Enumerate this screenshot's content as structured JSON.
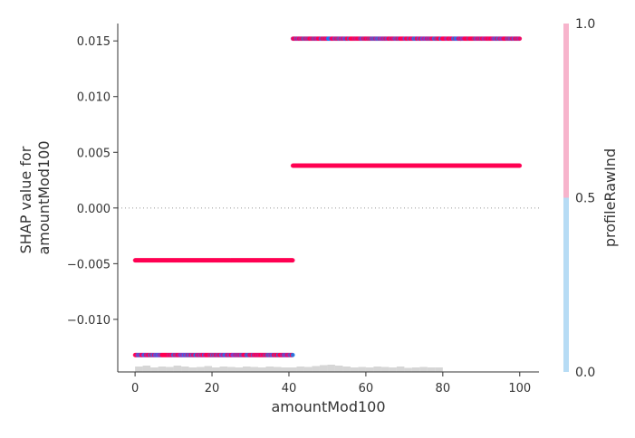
{
  "chart_data": {
    "type": "scatter",
    "title": "",
    "xlabel": "amountMod100",
    "ylabel_lines": [
      "SHAP value for",
      "amountMod100"
    ],
    "xlim": [
      -4.5,
      105
    ],
    "ylim": [
      -0.01472,
      0.01656
    ],
    "xticks": [
      {
        "value": 0,
        "label": "0"
      },
      {
        "value": 20,
        "label": "20"
      },
      {
        "value": 40,
        "label": "40"
      },
      {
        "value": 60,
        "label": "60"
      },
      {
        "value": 80,
        "label": "80"
      },
      {
        "value": 100,
        "label": "100"
      }
    ],
    "yticks": [
      {
        "value": 0.015,
        "label": "0.015"
      },
      {
        "value": 0.01,
        "label": "0.010"
      },
      {
        "value": 0.005,
        "label": "0.005"
      },
      {
        "value": 0.0,
        "label": "0.000"
      },
      {
        "value": -0.005,
        "label": "−0.005"
      },
      {
        "value": -0.01,
        "label": "−0.010"
      }
    ],
    "zero_line": 0.0,
    "series": [
      {
        "y": 0.0152,
        "x_range": [
          41,
          100
        ],
        "mix": "mixed"
      },
      {
        "y": 0.0038,
        "x_range": [
          41,
          100
        ],
        "mix": "red"
      },
      {
        "y": -0.0047,
        "x_range": [
          0,
          41
        ],
        "mix": "red"
      },
      {
        "y": -0.0132,
        "x_range": [
          0,
          41
        ],
        "mix": "mixed"
      }
    ],
    "histogram": {
      "bin_start": 0,
      "bin_width": 2,
      "heights": [
        0.6,
        0.7,
        0.5,
        0.6,
        0.55,
        0.7,
        0.6,
        0.5,
        0.55,
        0.65,
        0.5,
        0.6,
        0.55,
        0.5,
        0.6,
        0.55,
        0.5,
        0.6,
        0.55,
        0.5,
        0.5,
        0.6,
        0.55,
        0.65,
        0.75,
        0.8,
        0.7,
        0.6,
        0.5,
        0.55,
        0.5,
        0.6,
        0.55,
        0.5,
        0.6,
        0.45,
        0.5,
        0.55,
        0.5,
        0.5
      ]
    },
    "colorbar": {
      "title": "profileRawInd",
      "ticks": [
        {
          "value": 1.0,
          "label": "1.0"
        },
        {
          "value": 0.5,
          "label": "0.5"
        },
        {
          "value": 0.0,
          "label": "0.0"
        }
      ],
      "low_color": "#b7dcf5",
      "high_color": "#f7b4cc"
    },
    "colors": {
      "red": "#ff0052",
      "blue": "#008bfb",
      "purple": "#7d3fd0",
      "axis": "#333333",
      "zero_line": "#999999",
      "histogram": "#cccccc"
    }
  }
}
